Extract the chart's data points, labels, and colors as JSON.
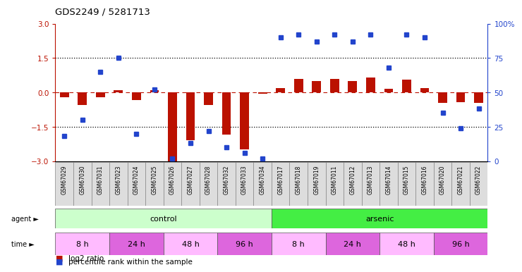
{
  "title": "GDS2249 / 5281713",
  "samples": [
    "GSM67029",
    "GSM67030",
    "GSM67031",
    "GSM67023",
    "GSM67024",
    "GSM67025",
    "GSM67026",
    "GSM67027",
    "GSM67028",
    "GSM67032",
    "GSM67033",
    "GSM67034",
    "GSM67017",
    "GSM67018",
    "GSM67019",
    "GSM67011",
    "GSM67012",
    "GSM67013",
    "GSM67014",
    "GSM67015",
    "GSM67016",
    "GSM67020",
    "GSM67021",
    "GSM67022"
  ],
  "log2_ratio": [
    -0.2,
    -0.55,
    -0.2,
    0.08,
    -0.35,
    0.08,
    -3.0,
    -2.1,
    -0.55,
    -1.85,
    -2.5,
    -0.05,
    0.2,
    0.6,
    0.5,
    0.6,
    0.5,
    0.65,
    0.15,
    0.55,
    0.2,
    -0.45,
    -0.42,
    -0.45
  ],
  "percentile_rank": [
    18,
    30,
    65,
    75,
    20,
    52,
    2,
    13,
    22,
    10,
    6,
    2,
    90,
    92,
    87,
    92,
    87,
    92,
    68,
    92,
    90,
    35,
    24,
    38
  ],
  "ylim_left": [
    -3,
    3
  ],
  "ylim_right": [
    0,
    100
  ],
  "yticks_left": [
    -3,
    -1.5,
    0,
    1.5,
    3
  ],
  "yticks_right": [
    0,
    25,
    50,
    75,
    100
  ],
  "hlines_dotted": [
    -1.5,
    1.5
  ],
  "hline_dashed": 0,
  "bar_color": "#bb1100",
  "dot_color": "#2244cc",
  "agent_groups": [
    {
      "label": "control",
      "start": 0,
      "end": 11,
      "color": "#ccffcc"
    },
    {
      "label": "arsenic",
      "start": 12,
      "end": 23,
      "color": "#44ee44"
    }
  ],
  "time_groups": [
    {
      "label": "8 h",
      "start": 0,
      "end": 2,
      "color": "#ffbbff"
    },
    {
      "label": "24 h",
      "start": 3,
      "end": 5,
      "color": "#dd66dd"
    },
    {
      "label": "48 h",
      "start": 6,
      "end": 8,
      "color": "#ffbbff"
    },
    {
      "label": "96 h",
      "start": 9,
      "end": 11,
      "color": "#dd66dd"
    },
    {
      "label": "8 h",
      "start": 12,
      "end": 14,
      "color": "#ffbbff"
    },
    {
      "label": "24 h",
      "start": 15,
      "end": 17,
      "color": "#dd66dd"
    },
    {
      "label": "48 h",
      "start": 18,
      "end": 20,
      "color": "#ffbbff"
    },
    {
      "label": "96 h",
      "start": 21,
      "end": 23,
      "color": "#dd66dd"
    }
  ],
  "legend_items": [
    {
      "label": "log2 ratio",
      "color": "#bb1100"
    },
    {
      "label": "percentile rank within the sample",
      "color": "#2244cc"
    }
  ],
  "sample_cell_color": "#dddddd",
  "bar_width": 0.5
}
